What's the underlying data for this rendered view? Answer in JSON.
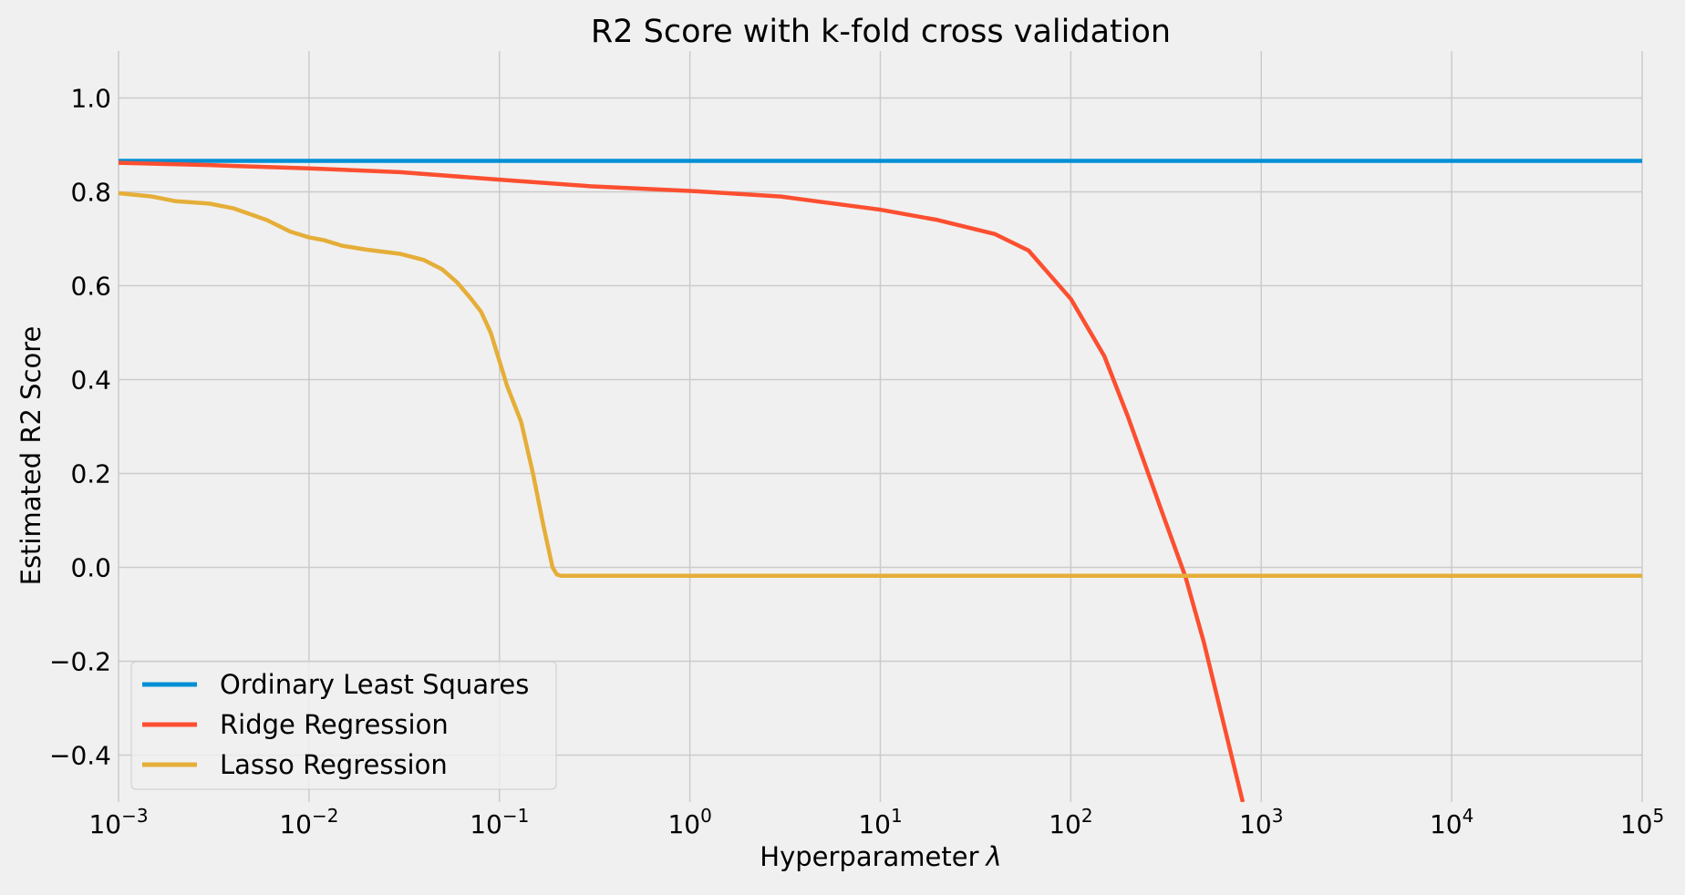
{
  "chart_data": {
    "type": "line",
    "title": "R2 Score with k-fold cross validation",
    "xlabel": "Hyperparameter λ",
    "xlabel_text": "Hyperparameter",
    "xlabel_symbol": "λ",
    "ylabel": "Estimated R2 Score",
    "x_scale": "log",
    "xlim": [
      0.001,
      100000
    ],
    "ylim": [
      -0.5,
      1.1
    ],
    "x_ticks": [
      {
        "base": "10",
        "exp": "−3",
        "value": 0.001
      },
      {
        "base": "10",
        "exp": "−2",
        "value": 0.01
      },
      {
        "base": "10",
        "exp": "−1",
        "value": 0.1
      },
      {
        "base": "10",
        "exp": "0",
        "value": 1
      },
      {
        "base": "10",
        "exp": "1",
        "value": 10
      },
      {
        "base": "10",
        "exp": "2",
        "value": 100
      },
      {
        "base": "10",
        "exp": "3",
        "value": 1000
      },
      {
        "base": "10",
        "exp": "4",
        "value": 10000
      },
      {
        "base": "10",
        "exp": "5",
        "value": 100000
      }
    ],
    "y_ticks": [
      {
        "label": "−0.4",
        "value": -0.4
      },
      {
        "label": "−0.2",
        "value": -0.2
      },
      {
        "label": "0.0",
        "value": 0.0
      },
      {
        "label": "0.2",
        "value": 0.2
      },
      {
        "label": "0.4",
        "value": 0.4
      },
      {
        "label": "0.6",
        "value": 0.6
      },
      {
        "label": "0.8",
        "value": 0.8
      },
      {
        "label": "1.0",
        "value": 1.0
      }
    ],
    "grid": true,
    "legend_position": "lower-left",
    "background": "#f0f0f0",
    "grid_color": "#cbcbcb",
    "series": [
      {
        "name": "Ordinary Least Squares",
        "color": "#008fd5",
        "points": [
          [
            0.001,
            0.866
          ],
          [
            100000,
            0.866
          ]
        ]
      },
      {
        "name": "Ridge Regression",
        "color": "#fc4f30",
        "points": [
          [
            0.001,
            0.862
          ],
          [
            0.003,
            0.857
          ],
          [
            0.01,
            0.85
          ],
          [
            0.03,
            0.842
          ],
          [
            0.1,
            0.826
          ],
          [
            0.3,
            0.812
          ],
          [
            1,
            0.802
          ],
          [
            3,
            0.79
          ],
          [
            10,
            0.762
          ],
          [
            20,
            0.74
          ],
          [
            40,
            0.71
          ],
          [
            60,
            0.675
          ],
          [
            100,
            0.572
          ],
          [
            150,
            0.45
          ],
          [
            200,
            0.32
          ],
          [
            300,
            0.12
          ],
          [
            400,
            -0.02
          ],
          [
            500,
            -0.16
          ],
          [
            650,
            -0.35
          ],
          [
            800,
            -0.5
          ]
        ]
      },
      {
        "name": "Lasso Regression",
        "color": "#e5ae38",
        "points": [
          [
            0.001,
            0.797
          ],
          [
            0.0015,
            0.79
          ],
          [
            0.002,
            0.78
          ],
          [
            0.003,
            0.775
          ],
          [
            0.004,
            0.765
          ],
          [
            0.006,
            0.74
          ],
          [
            0.008,
            0.715
          ],
          [
            0.01,
            0.703
          ],
          [
            0.012,
            0.697
          ],
          [
            0.015,
            0.685
          ],
          [
            0.02,
            0.677
          ],
          [
            0.03,
            0.668
          ],
          [
            0.04,
            0.655
          ],
          [
            0.05,
            0.635
          ],
          [
            0.06,
            0.607
          ],
          [
            0.07,
            0.575
          ],
          [
            0.08,
            0.545
          ],
          [
            0.09,
            0.5
          ],
          [
            0.11,
            0.385
          ],
          [
            0.13,
            0.31
          ],
          [
            0.15,
            0.2
          ],
          [
            0.17,
            0.09
          ],
          [
            0.19,
            0.0
          ],
          [
            0.2,
            -0.015
          ],
          [
            0.21,
            -0.018
          ],
          [
            100000,
            -0.018
          ]
        ]
      }
    ]
  }
}
